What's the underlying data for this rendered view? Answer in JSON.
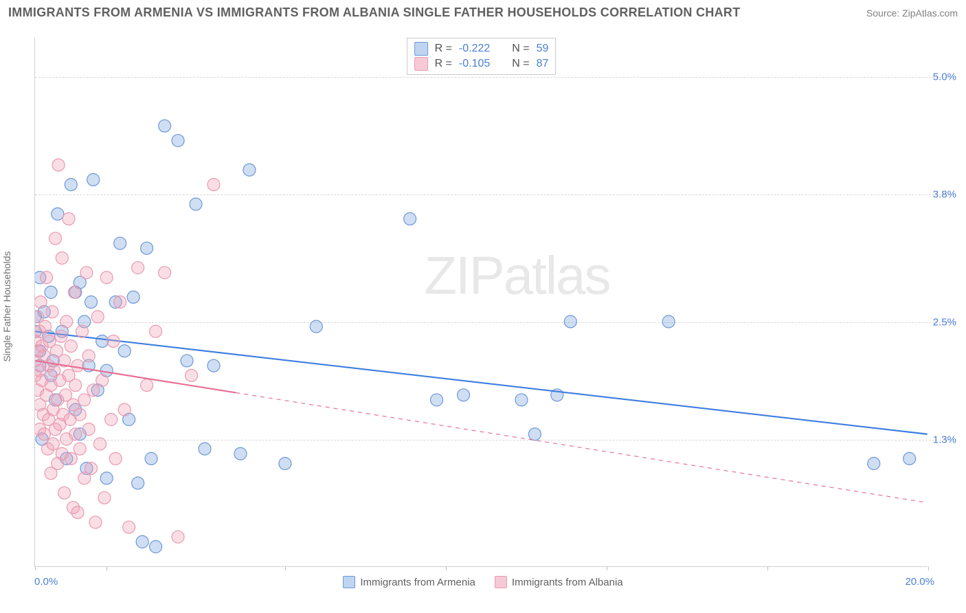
{
  "title": "IMMIGRANTS FROM ARMENIA VS IMMIGRANTS FROM ALBANIA SINGLE FATHER HOUSEHOLDS CORRELATION CHART",
  "source_label": "Source:",
  "source_name": "ZipAtlas.com",
  "y_axis_label": "Single Father Households",
  "watermark_part1": "ZIP",
  "watermark_part2": "atlas",
  "chart": {
    "type": "scatter",
    "xlim": [
      0.0,
      20.0
    ],
    "ylim": [
      0.0,
      5.4
    ],
    "x_left_label": "0.0%",
    "x_right_label": "20.0%",
    "x_tick_positions": [
      0.0,
      1.6,
      5.6,
      9.2,
      12.8,
      16.4,
      20.0
    ],
    "y_ticks": [
      {
        "value": 1.3,
        "label": "1.3%"
      },
      {
        "value": 2.5,
        "label": "2.5%"
      },
      {
        "value": 3.8,
        "label": "3.8%"
      },
      {
        "value": 5.0,
        "label": "5.0%"
      }
    ],
    "grid_color": "#d8d8d8",
    "background_color": "#ffffff",
    "marker_radius": 9,
    "marker_stroke_width": 1.2,
    "series": [
      {
        "name": "Immigrants from Armenia",
        "color_fill": "rgba(120,160,220,0.35)",
        "color_stroke": "#6a98d8",
        "swatch_fill": "#bfd4f0",
        "swatch_border": "#6a98d8",
        "r_value": "-0.222",
        "n_value": "59",
        "regression": {
          "x1": 0.0,
          "y1": 2.4,
          "x2": 20.0,
          "y2": 1.35,
          "solid_until_x": 20.0
        },
        "line_color": "#3d7de0",
        "line_width": 2.2,
        "points": [
          [
            0.0,
            2.4
          ],
          [
            0.0,
            2.55
          ],
          [
            0.1,
            2.95
          ],
          [
            0.1,
            2.2
          ],
          [
            0.1,
            2.05
          ],
          [
            0.15,
            1.3
          ],
          [
            0.2,
            2.6
          ],
          [
            0.3,
            2.35
          ],
          [
            0.35,
            2.8
          ],
          [
            0.35,
            1.95
          ],
          [
            0.4,
            2.1
          ],
          [
            0.45,
            1.7
          ],
          [
            0.5,
            3.6
          ],
          [
            0.6,
            2.4
          ],
          [
            0.7,
            1.1
          ],
          [
            0.8,
            3.9
          ],
          [
            0.9,
            1.6
          ],
          [
            0.9,
            2.8
          ],
          [
            1.0,
            2.9
          ],
          [
            1.0,
            1.35
          ],
          [
            1.1,
            2.5
          ],
          [
            1.15,
            1.0
          ],
          [
            1.2,
            2.05
          ],
          [
            1.25,
            2.7
          ],
          [
            1.3,
            3.95
          ],
          [
            1.4,
            1.8
          ],
          [
            1.5,
            2.3
          ],
          [
            1.6,
            2.0
          ],
          [
            1.6,
            0.9
          ],
          [
            1.8,
            2.7
          ],
          [
            1.9,
            3.3
          ],
          [
            2.0,
            2.2
          ],
          [
            2.1,
            1.5
          ],
          [
            2.2,
            2.75
          ],
          [
            2.3,
            0.85
          ],
          [
            2.4,
            0.25
          ],
          [
            2.5,
            3.25
          ],
          [
            2.6,
            1.1
          ],
          [
            2.7,
            0.2
          ],
          [
            2.9,
            4.5
          ],
          [
            3.2,
            4.35
          ],
          [
            3.4,
            2.1
          ],
          [
            3.6,
            3.7
          ],
          [
            3.8,
            1.2
          ],
          [
            4.0,
            2.05
          ],
          [
            4.6,
            1.15
          ],
          [
            4.8,
            4.05
          ],
          [
            5.6,
            1.05
          ],
          [
            6.3,
            2.45
          ],
          [
            8.4,
            3.55
          ],
          [
            9.0,
            1.7
          ],
          [
            9.6,
            1.75
          ],
          [
            10.9,
            1.7
          ],
          [
            11.2,
            1.35
          ],
          [
            11.7,
            1.75
          ],
          [
            12.0,
            2.5
          ],
          [
            14.2,
            2.5
          ],
          [
            18.8,
            1.05
          ],
          [
            19.6,
            1.1
          ]
        ]
      },
      {
        "name": "Immigrants from Albania",
        "color_fill": "rgba(240,160,180,0.35)",
        "color_stroke": "#e89ab0",
        "swatch_fill": "#f6c9d6",
        "swatch_border": "#e89ab0",
        "r_value": "-0.105",
        "n_value": "87",
        "regression": {
          "x1": 0.0,
          "y1": 2.1,
          "x2": 20.0,
          "y2": 0.65,
          "solid_until_x": 4.5
        },
        "line_color": "#e86f93",
        "line_width": 2.2,
        "points": [
          [
            0.0,
            2.3
          ],
          [
            0.0,
            2.1
          ],
          [
            0.0,
            1.95
          ],
          [
            0.05,
            2.55
          ],
          [
            0.05,
            2.2
          ],
          [
            0.05,
            1.8
          ],
          [
            0.1,
            2.4
          ],
          [
            0.1,
            2.0
          ],
          [
            0.1,
            1.65
          ],
          [
            0.1,
            1.4
          ],
          [
            0.12,
            2.7
          ],
          [
            0.15,
            2.25
          ],
          [
            0.15,
            1.9
          ],
          [
            0.18,
            1.55
          ],
          [
            0.2,
            2.15
          ],
          [
            0.2,
            1.35
          ],
          [
            0.22,
            2.45
          ],
          [
            0.25,
            1.75
          ],
          [
            0.25,
            2.95
          ],
          [
            0.28,
            1.2
          ],
          [
            0.3,
            2.05
          ],
          [
            0.3,
            1.5
          ],
          [
            0.32,
            2.3
          ],
          [
            0.35,
            1.85
          ],
          [
            0.35,
            0.95
          ],
          [
            0.38,
            2.6
          ],
          [
            0.4,
            1.6
          ],
          [
            0.4,
            1.25
          ],
          [
            0.42,
            2.0
          ],
          [
            0.45,
            1.4
          ],
          [
            0.45,
            3.35
          ],
          [
            0.48,
            2.2
          ],
          [
            0.5,
            1.7
          ],
          [
            0.5,
            1.05
          ],
          [
            0.52,
            4.1
          ],
          [
            0.55,
            1.9
          ],
          [
            0.55,
            1.45
          ],
          [
            0.58,
            2.35
          ],
          [
            0.6,
            1.15
          ],
          [
            0.6,
            3.15
          ],
          [
            0.62,
            1.55
          ],
          [
            0.65,
            2.1
          ],
          [
            0.65,
            0.75
          ],
          [
            0.68,
            1.75
          ],
          [
            0.7,
            1.3
          ],
          [
            0.7,
            2.5
          ],
          [
            0.75,
            1.95
          ],
          [
            0.75,
            3.55
          ],
          [
            0.78,
            1.5
          ],
          [
            0.8,
            1.1
          ],
          [
            0.8,
            2.25
          ],
          [
            0.85,
            1.65
          ],
          [
            0.85,
            0.6
          ],
          [
            0.88,
            2.8
          ],
          [
            0.9,
            1.35
          ],
          [
            0.9,
            1.85
          ],
          [
            0.95,
            0.55
          ],
          [
            0.95,
            2.05
          ],
          [
            1.0,
            1.55
          ],
          [
            1.0,
            1.2
          ],
          [
            1.05,
            2.4
          ],
          [
            1.1,
            0.9
          ],
          [
            1.1,
            1.7
          ],
          [
            1.15,
            3.0
          ],
          [
            1.2,
            1.4
          ],
          [
            1.2,
            2.15
          ],
          [
            1.25,
            1.0
          ],
          [
            1.3,
            1.8
          ],
          [
            1.35,
            0.45
          ],
          [
            1.4,
            2.55
          ],
          [
            1.45,
            1.25
          ],
          [
            1.5,
            1.9
          ],
          [
            1.55,
            0.7
          ],
          [
            1.6,
            2.95
          ],
          [
            1.7,
            1.5
          ],
          [
            1.75,
            2.3
          ],
          [
            1.8,
            1.1
          ],
          [
            1.9,
            2.7
          ],
          [
            2.0,
            1.6
          ],
          [
            2.1,
            0.4
          ],
          [
            2.3,
            3.05
          ],
          [
            2.5,
            1.85
          ],
          [
            2.7,
            2.4
          ],
          [
            2.9,
            3.0
          ],
          [
            3.2,
            0.3
          ],
          [
            3.5,
            1.95
          ],
          [
            4.0,
            3.9
          ]
        ]
      }
    ],
    "bottom_legend": [
      {
        "series_index": 0
      },
      {
        "series_index": 1
      }
    ],
    "stat_labels": {
      "r": "R =",
      "n": "N ="
    }
  }
}
